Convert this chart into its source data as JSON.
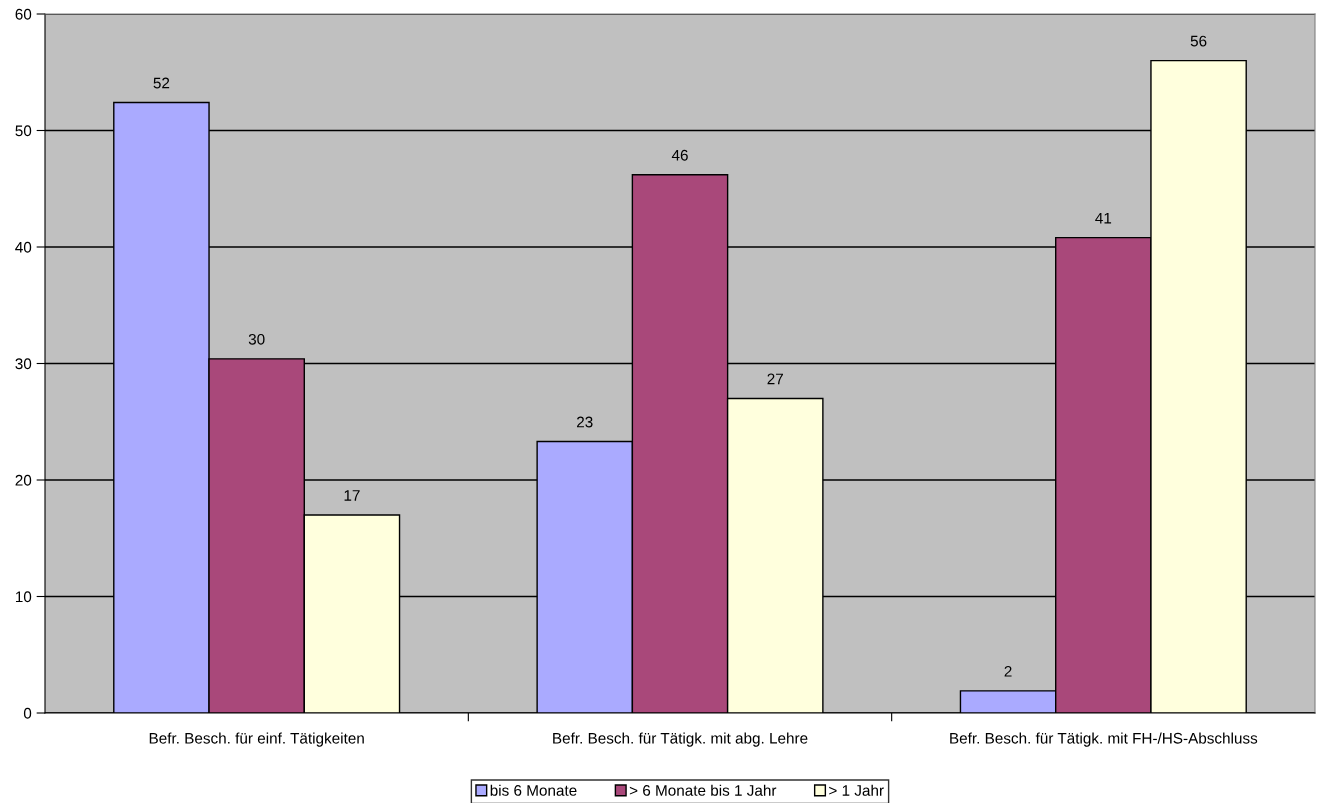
{
  "chart_data": {
    "type": "bar",
    "categories": [
      "Befr. Besch. für einf. Tätigkeiten",
      "Befr. Besch. für Tätigk. mit abg. Lehre",
      "Befr. Besch. für Tätigk. mit FH-/HS-Abschluss"
    ],
    "series": [
      {
        "name": "bis 6 Monate",
        "color": "#aaaaff",
        "values": [
          52.4,
          23.3,
          1.9
        ],
        "value_labels": [
          "52",
          "23",
          "2"
        ]
      },
      {
        "name": "> 6 Monate bis 1 Jahr",
        "color": "#a9487a",
        "values": [
          30.4,
          46.2,
          40.8
        ],
        "value_labels": [
          "30",
          "46",
          "41"
        ]
      },
      {
        "name": "> 1 Jahr",
        "color": "#ffffdd",
        "values": [
          17,
          27,
          56
        ],
        "value_labels": [
          "17",
          "27",
          "56"
        ]
      }
    ],
    "ylim": [
      0,
      60
    ],
    "yticks": [
      0,
      10,
      20,
      30,
      40,
      50,
      60
    ],
    "grid": "y",
    "legend": "bottom"
  }
}
